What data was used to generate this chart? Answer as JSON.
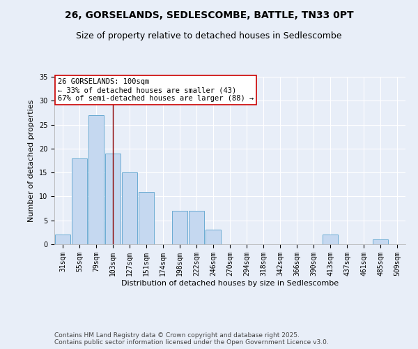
{
  "title1": "26, GORSELANDS, SEDLESCOMBE, BATTLE, TN33 0PT",
  "title2": "Size of property relative to detached houses in Sedlescombe",
  "xlabel": "Distribution of detached houses by size in Sedlescombe",
  "ylabel": "Number of detached properties",
  "categories": [
    "31sqm",
    "55sqm",
    "79sqm",
    "103sqm",
    "127sqm",
    "151sqm",
    "174sqm",
    "198sqm",
    "222sqm",
    "246sqm",
    "270sqm",
    "294sqm",
    "318sqm",
    "342sqm",
    "366sqm",
    "390sqm",
    "413sqm",
    "437sqm",
    "461sqm",
    "485sqm",
    "509sqm"
  ],
  "values": [
    2,
    18,
    27,
    19,
    15,
    11,
    0,
    7,
    7,
    3,
    0,
    0,
    0,
    0,
    0,
    0,
    2,
    0,
    0,
    1,
    0
  ],
  "bar_color": "#c5d8f0",
  "bar_edgecolor": "#6aabd2",
  "bar_linewidth": 0.7,
  "vline_x_index": 3,
  "vline_color": "#8b0000",
  "annotation_text": "26 GORSELANDS: 100sqm\n← 33% of detached houses are smaller (43)\n67% of semi-detached houses are larger (88) →",
  "annotation_fontsize": 7.5,
  "annotation_box_color": "white",
  "annotation_box_edgecolor": "#cc0000",
  "ylim": [
    0,
    35
  ],
  "yticks": [
    0,
    5,
    10,
    15,
    20,
    25,
    30,
    35
  ],
  "background_color": "#e8eef8",
  "footer_text": "Contains HM Land Registry data © Crown copyright and database right 2025.\nContains public sector information licensed under the Open Government Licence v3.0.",
  "footer_fontsize": 6.5,
  "title_fontsize1": 10,
  "title_fontsize2": 9,
  "tick_fontsize": 7,
  "axis_label_fontsize": 8
}
